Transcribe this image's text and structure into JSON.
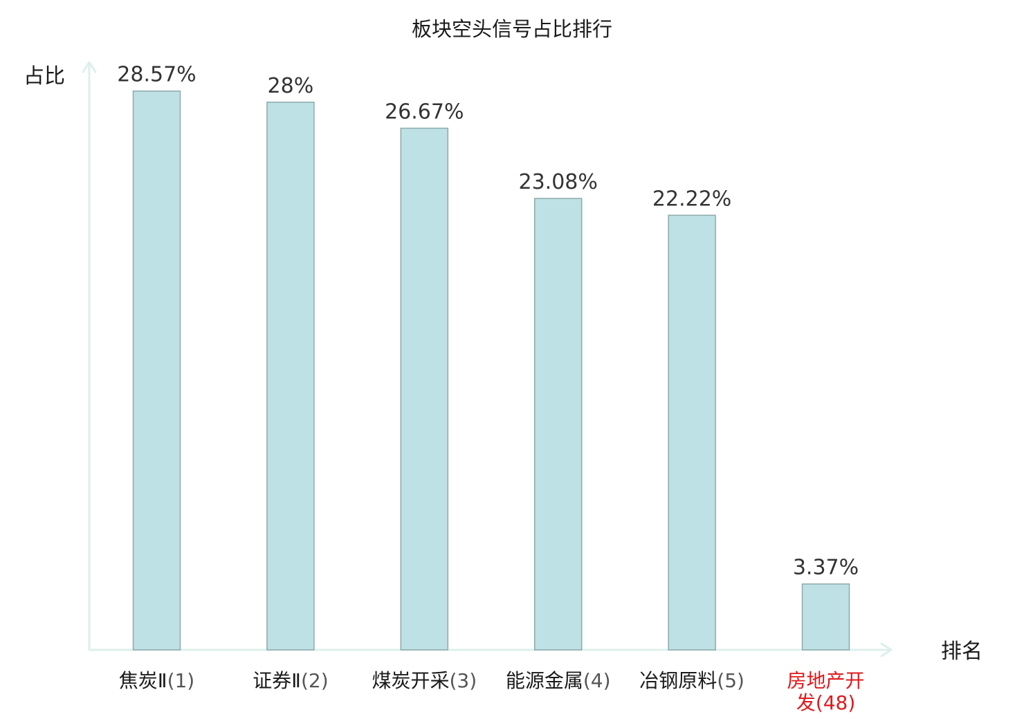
{
  "chart_data": {
    "type": "bar",
    "title": "板块空头信号占比排行",
    "ylabel": "占比",
    "xlabel": "排名",
    "ylim": [
      0,
      30
    ],
    "grid": false,
    "legend": "none",
    "categories": [
      {
        "name": "焦炭Ⅱ",
        "rank": "(1)",
        "highlight": false
      },
      {
        "name": "证券Ⅱ",
        "rank": "(2)",
        "highlight": false
      },
      {
        "name": "煤炭开采",
        "rank": "(3)",
        "highlight": false
      },
      {
        "name": "能源金属",
        "rank": "(4)",
        "highlight": false
      },
      {
        "name": "冶钢原料",
        "rank": "(5)",
        "highlight": false
      },
      {
        "name": "房地产开发",
        "rank": "(48)",
        "highlight": true
      }
    ],
    "values": [
      28.57,
      28,
      26.67,
      23.08,
      22.22,
      3.37
    ],
    "value_labels": [
      "28.57%",
      "28%",
      "26.67%",
      "23.08%",
      "22.22%",
      "3.37%"
    ],
    "colors": {
      "bar_fill": "#bde1e4",
      "bar_stroke": "#8fa9ab",
      "axis": "#dcf0ec",
      "highlight_label": "#e0191c"
    }
  }
}
